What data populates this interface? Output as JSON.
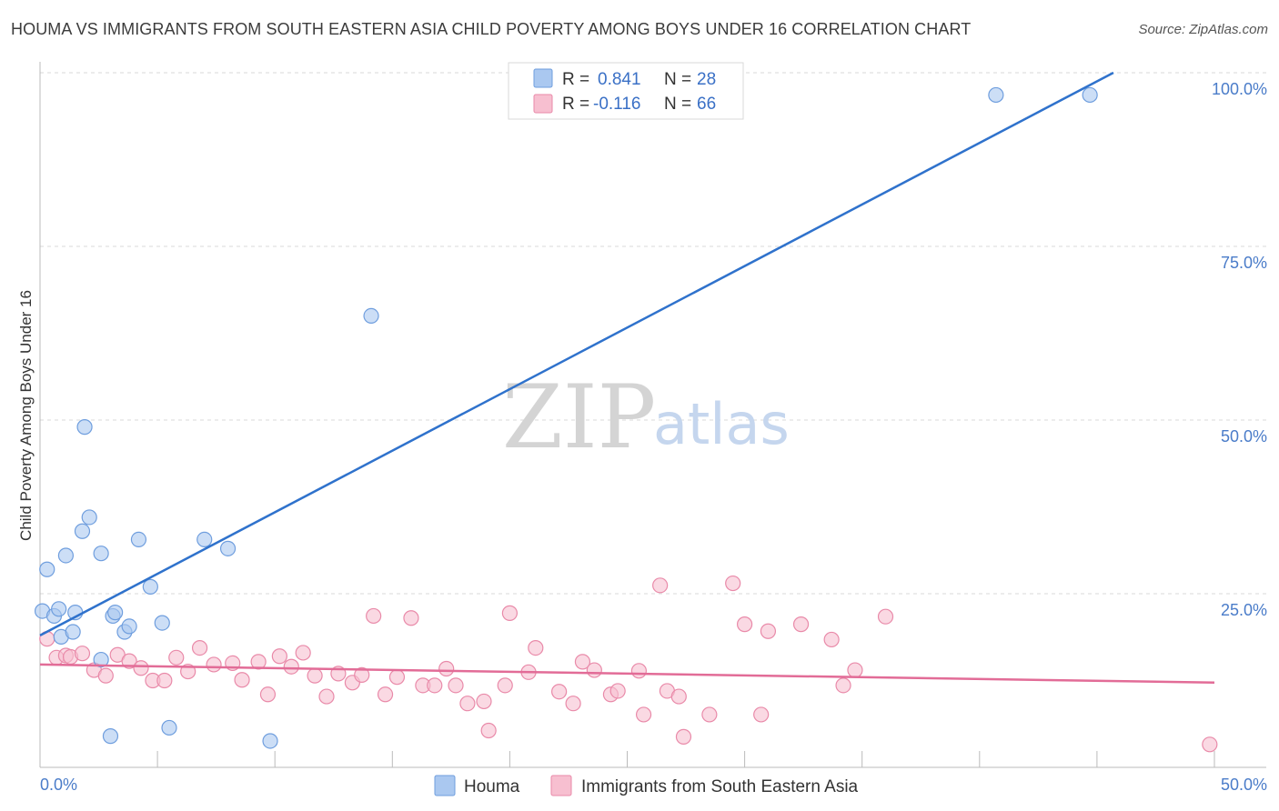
{
  "title": "HOUMA VS IMMIGRANTS FROM SOUTH EASTERN ASIA CHILD POVERTY AMONG BOYS UNDER 16 CORRELATION CHART",
  "source": "Source: ZipAtlas.com",
  "watermark": {
    "zip": "ZIP",
    "atlas": "atlas"
  },
  "colors": {
    "houma_fill": "#aac8f0",
    "houma_stroke": "#6f9ede",
    "houma_line": "#2f72cc",
    "imm_fill": "#f7bfd0",
    "imm_stroke": "#e98aa9",
    "imm_line": "#e26c97",
    "grid": "#d8d8d8",
    "tick_text": "#4a7cc9"
  },
  "legend": {
    "r_label": "R =",
    "n_label": "N =",
    "houma": {
      "r": "0.841",
      "n": "28"
    },
    "immigrants": {
      "r": "-0.116",
      "n": "66"
    }
  },
  "chart_data": {
    "type": "scatter",
    "title": "HOUMA VS IMMIGRANTS FROM SOUTH EASTERN ASIA CHILD POVERTY AMONG BOYS UNDER 16 CORRELATION CHART",
    "xlabel": "",
    "ylabel": "Child Poverty Among Boys Under 16",
    "xlim": [
      0,
      50
    ],
    "ylim": [
      0,
      100
    ],
    "x_tick_labels": [
      "0.0%",
      "50.0%"
    ],
    "y_tick_labels": [
      {
        "value": 25,
        "label": "25.0%"
      },
      {
        "value": 50,
        "label": "50.0%"
      },
      {
        "value": 75,
        "label": "75.0%"
      },
      {
        "value": 100,
        "label": "100.0%"
      }
    ],
    "series": [
      {
        "name": "Houma",
        "trend": {
          "x0": 0,
          "y0": 19.0,
          "x1": 45.7,
          "y1": 100.0
        },
        "points": [
          [
            0.1,
            22.5
          ],
          [
            0.3,
            28.5
          ],
          [
            0.6,
            21.8
          ],
          [
            0.8,
            22.8
          ],
          [
            0.9,
            18.8
          ],
          [
            1.1,
            30.5
          ],
          [
            1.4,
            19.5
          ],
          [
            1.5,
            22.3
          ],
          [
            1.8,
            34.0
          ],
          [
            1.9,
            49.0
          ],
          [
            2.1,
            36.0
          ],
          [
            2.6,
            30.8
          ],
          [
            2.6,
            15.5
          ],
          [
            3.1,
            21.8
          ],
          [
            3.2,
            22.3
          ],
          [
            3.0,
            4.5
          ],
          [
            3.6,
            19.5
          ],
          [
            3.8,
            20.3
          ],
          [
            4.2,
            32.8
          ],
          [
            4.7,
            26.0
          ],
          [
            5.2,
            20.8
          ],
          [
            5.5,
            5.7
          ],
          [
            7.0,
            32.8
          ],
          [
            8.0,
            31.5
          ],
          [
            9.8,
            3.8
          ],
          [
            14.1,
            65.0
          ],
          [
            40.7,
            96.8
          ],
          [
            44.7,
            96.8
          ]
        ]
      },
      {
        "name": "Immigrants from South Eastern Asia",
        "trend": {
          "x0": 0,
          "y0": 14.8,
          "x1": 50.0,
          "y1": 12.2
        },
        "points": [
          [
            0.3,
            18.5
          ],
          [
            0.7,
            15.8
          ],
          [
            1.1,
            16.1
          ],
          [
            1.3,
            15.9
          ],
          [
            1.8,
            16.4
          ],
          [
            2.3,
            14.0
          ],
          [
            2.8,
            13.2
          ],
          [
            3.3,
            16.2
          ],
          [
            3.8,
            15.3
          ],
          [
            4.3,
            14.3
          ],
          [
            4.8,
            12.5
          ],
          [
            5.3,
            12.5
          ],
          [
            5.8,
            15.8
          ],
          [
            6.3,
            13.8
          ],
          [
            6.8,
            17.2
          ],
          [
            7.4,
            14.8
          ],
          [
            8.2,
            15.0
          ],
          [
            8.6,
            12.6
          ],
          [
            9.3,
            15.2
          ],
          [
            9.7,
            10.5
          ],
          [
            10.2,
            16.0
          ],
          [
            10.7,
            14.5
          ],
          [
            11.2,
            16.5
          ],
          [
            11.7,
            13.2
          ],
          [
            12.2,
            10.2
          ],
          [
            12.7,
            13.5
          ],
          [
            13.3,
            12.2
          ],
          [
            13.7,
            13.3
          ],
          [
            14.2,
            21.8
          ],
          [
            14.7,
            10.5
          ],
          [
            15.2,
            13.0
          ],
          [
            15.8,
            21.5
          ],
          [
            16.3,
            11.8
          ],
          [
            16.8,
            11.8
          ],
          [
            17.3,
            14.2
          ],
          [
            17.7,
            11.8
          ],
          [
            18.2,
            9.2
          ],
          [
            18.9,
            9.5
          ],
          [
            19.1,
            5.3
          ],
          [
            19.8,
            11.8
          ],
          [
            20.0,
            22.2
          ],
          [
            20.8,
            13.7
          ],
          [
            21.1,
            17.2
          ],
          [
            22.1,
            10.9
          ],
          [
            22.7,
            9.2
          ],
          [
            23.1,
            15.2
          ],
          [
            23.6,
            14.0
          ],
          [
            24.3,
            10.5
          ],
          [
            24.6,
            11.0
          ],
          [
            25.5,
            13.9
          ],
          [
            25.7,
            7.6
          ],
          [
            26.4,
            26.2
          ],
          [
            26.7,
            11.0
          ],
          [
            27.2,
            10.2
          ],
          [
            27.4,
            4.4
          ],
          [
            28.5,
            7.6
          ],
          [
            29.5,
            26.5
          ],
          [
            30.0,
            20.6
          ],
          [
            30.7,
            7.6
          ],
          [
            31.0,
            19.6
          ],
          [
            32.4,
            20.6
          ],
          [
            33.7,
            18.4
          ],
          [
            34.2,
            11.8
          ],
          [
            34.7,
            14.0
          ],
          [
            36.0,
            21.7
          ],
          [
            49.8,
            3.3
          ]
        ]
      }
    ]
  }
}
